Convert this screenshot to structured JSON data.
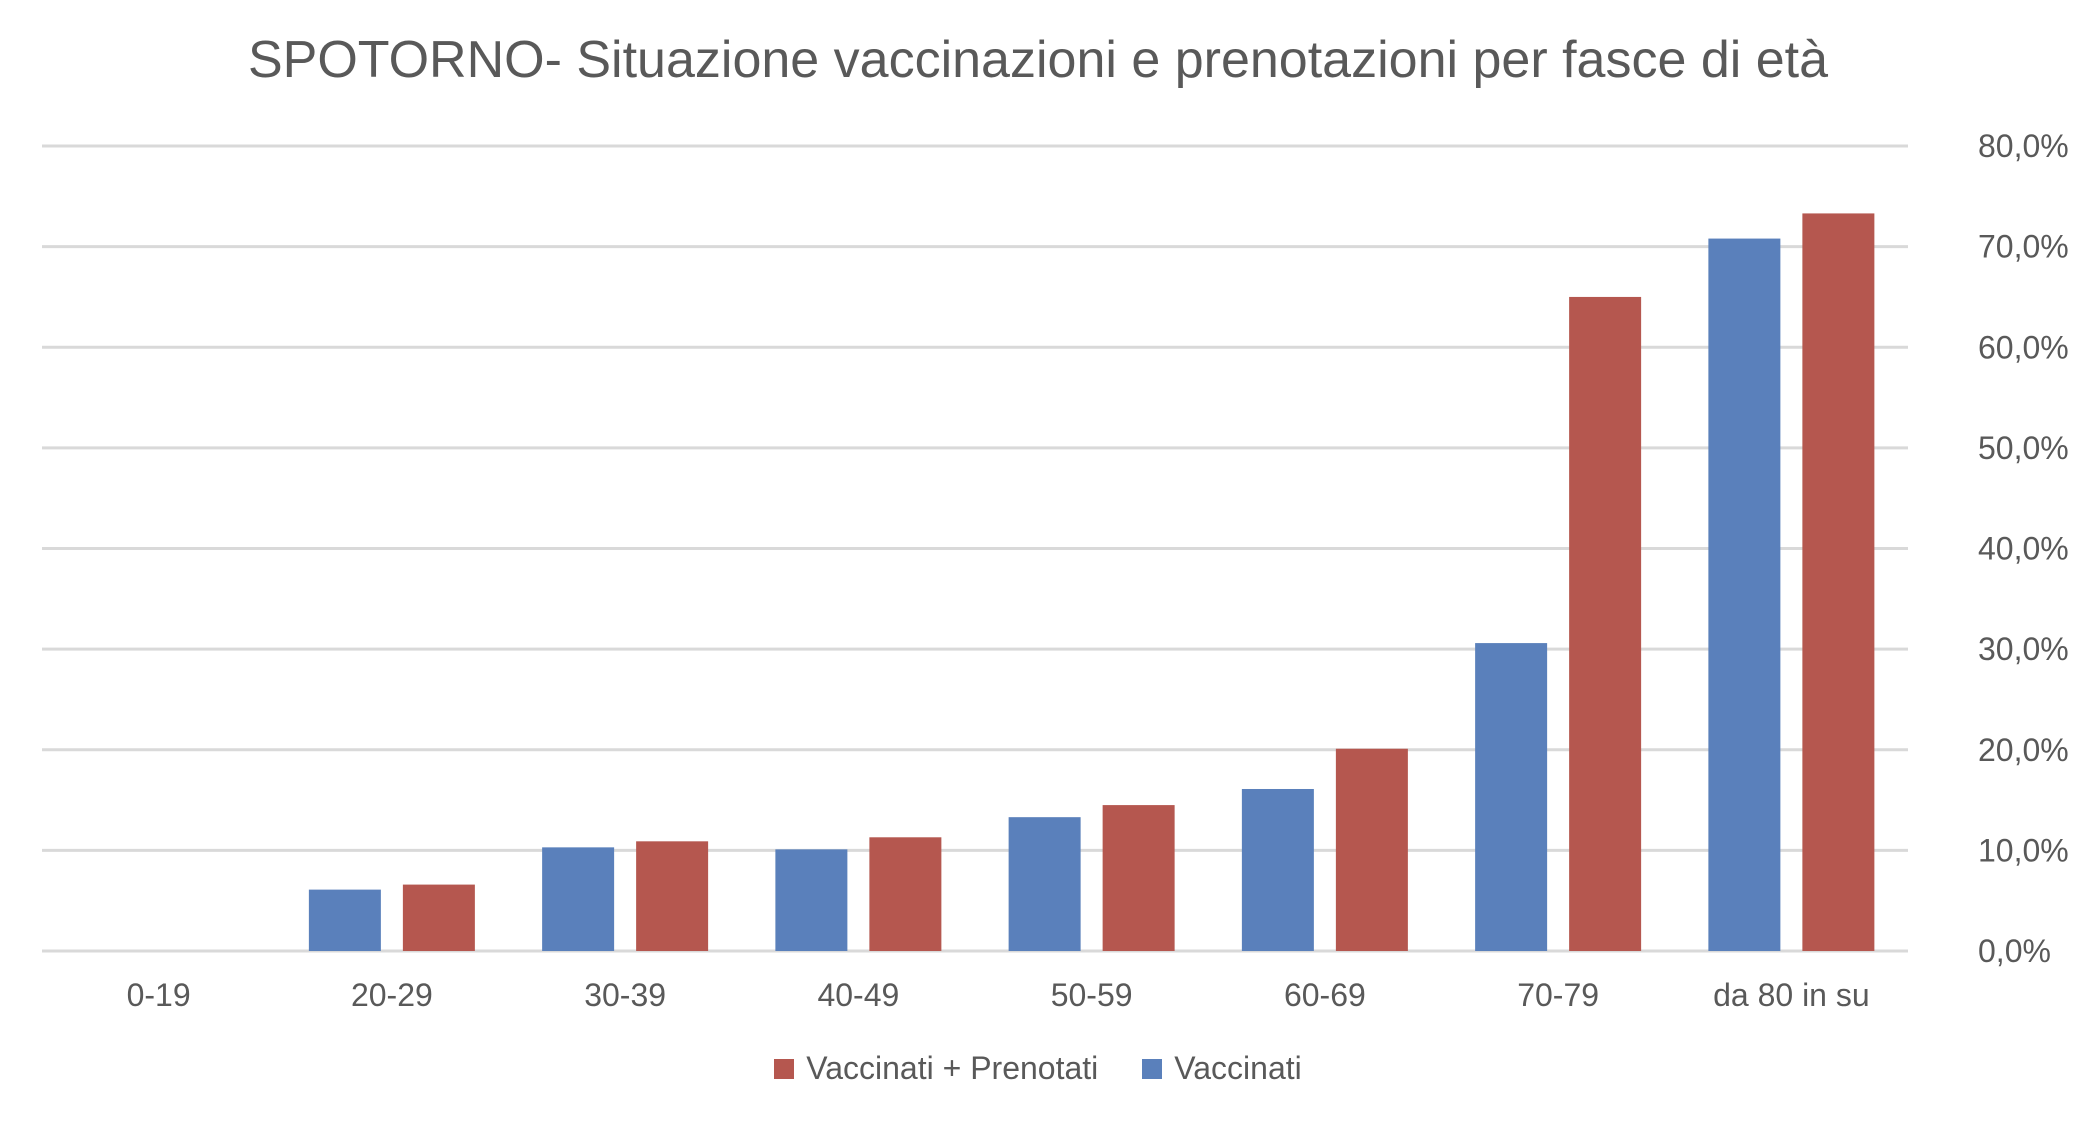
{
  "chart_data": {
    "type": "bar",
    "title": "SPOTORNO- Situazione vaccinazioni e prenotazioni per fasce di età",
    "categories": [
      "0-19",
      "20-29",
      "30-39",
      "40-49",
      "50-59",
      "60-69",
      "70-79",
      "da 80 in su"
    ],
    "series": [
      {
        "name": "Vaccinati",
        "color": "#5a80bb",
        "values": [
          0,
          6.1,
          10.3,
          10.1,
          13.3,
          16.1,
          30.6,
          70.8
        ]
      },
      {
        "name": "Vaccinati + Prenotati",
        "color": "#b5574f",
        "values": [
          0,
          6.6,
          10.9,
          11.3,
          14.5,
          20.1,
          65.0,
          73.3
        ]
      }
    ],
    "y_axis": {
      "position": "right",
      "ylim": [
        0,
        80
      ],
      "ticks": [
        0,
        10,
        20,
        30,
        40,
        50,
        60,
        70,
        80
      ],
      "tick_labels": [
        "0,0%",
        "10,0%",
        "20,0%",
        "30,0%",
        "40,0%",
        "50,0%",
        "60,0%",
        "70,0%",
        "80,0%"
      ]
    },
    "grid": true,
    "legend_position": "bottom",
    "legend_order": [
      "Vaccinati + Prenotati",
      "Vaccinati"
    ]
  }
}
